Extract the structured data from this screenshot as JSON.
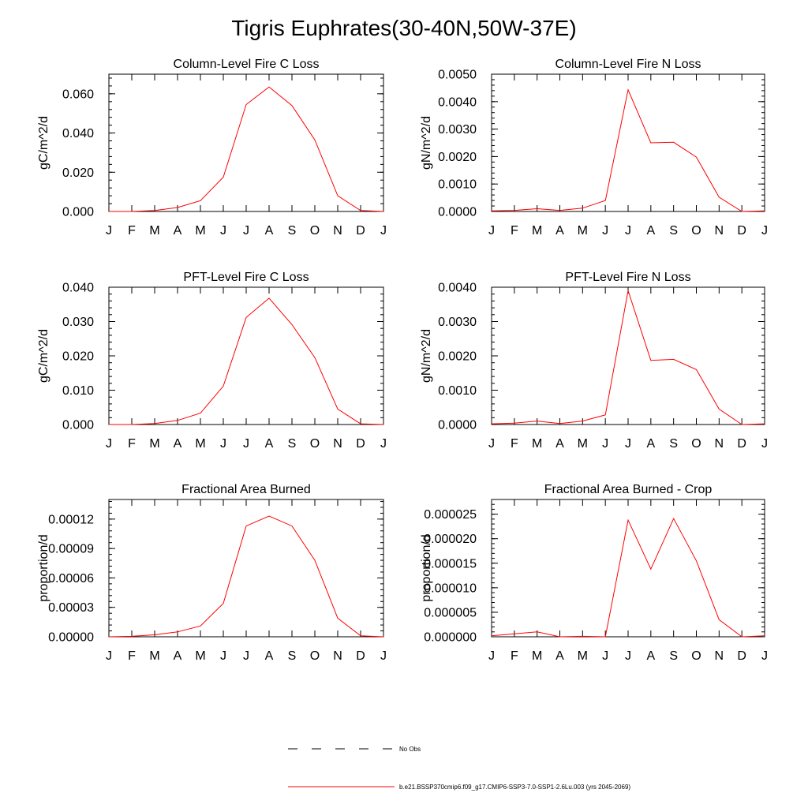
{
  "figure_title": "Tigris Euphrates(30-40N,50W-37E)",
  "series_color": "#ff0000",
  "legend": {
    "obs_label": "No Obs",
    "model_label": "b.e21.BSSP370cmip6.f09_g17.CMIP6-SSP3-7.0-SSP1-2.6Lu.003 (yrs 2045-2069)"
  },
  "chart_data": [
    {
      "type": "line",
      "title": "Column-Level Fire C Loss",
      "ylabel": "gC/m^2/d",
      "categories": [
        "J",
        "F",
        "M",
        "A",
        "M",
        "J",
        "J",
        "A",
        "S",
        "O",
        "N",
        "D",
        "J"
      ],
      "ylim": [
        0,
        0.07
      ],
      "yticks": [
        "0.000",
        "0.020",
        "0.040",
        "0.060"
      ],
      "ytick_values": [
        0,
        0.02,
        0.04,
        0.06
      ],
      "series": [
        {
          "values": [
            0.0,
            0.0,
            0.0005,
            0.002,
            0.0055,
            0.0175,
            0.0545,
            0.0635,
            0.054,
            0.0365,
            0.008,
            0.0005,
            0.0
          ]
        }
      ]
    },
    {
      "type": "line",
      "title": "Column-Level Fire N Loss",
      "ylabel": "gN/m^2/d",
      "categories": [
        "J",
        "F",
        "M",
        "A",
        "M",
        "J",
        "J",
        "A",
        "S",
        "O",
        "N",
        "D",
        "J"
      ],
      "ylim": [
        0,
        0.005
      ],
      "yticks": [
        "0.0000",
        "0.0010",
        "0.0020",
        "0.0030",
        "0.0040",
        "0.0050"
      ],
      "ytick_values": [
        0,
        0.001,
        0.002,
        0.003,
        0.004,
        0.005
      ],
      "series": [
        {
          "values": [
            2e-05,
            4e-05,
            0.0001,
            4e-05,
            0.00012,
            0.0004,
            0.00443,
            0.0025,
            0.00252,
            0.00198,
            0.00052,
            0.0,
            2e-05
          ]
        }
      ]
    },
    {
      "type": "line",
      "title": "PFT-Level Fire C Loss",
      "ylabel": "gC/m^2/d",
      "categories": [
        "J",
        "F",
        "M",
        "A",
        "M",
        "J",
        "J",
        "A",
        "S",
        "O",
        "N",
        "D",
        "J"
      ],
      "ylim": [
        0,
        0.04
      ],
      "yticks": [
        "0.000",
        "0.010",
        "0.020",
        "0.030",
        "0.040"
      ],
      "ytick_values": [
        0,
        0.01,
        0.02,
        0.03,
        0.04
      ],
      "series": [
        {
          "values": [
            0.0,
            0.0,
            0.0003,
            0.0012,
            0.0033,
            0.0112,
            0.0312,
            0.0368,
            0.0291,
            0.0195,
            0.0045,
            0.0002,
            0.0
          ]
        }
      ]
    },
    {
      "type": "line",
      "title": "PFT-Level Fire N Loss",
      "ylabel": "gN/m^2/d",
      "categories": [
        "J",
        "F",
        "M",
        "A",
        "M",
        "J",
        "J",
        "A",
        "S",
        "O",
        "N",
        "D",
        "J"
      ],
      "ylim": [
        0,
        0.004
      ],
      "yticks": [
        "0.0000",
        "0.0010",
        "0.0020",
        "0.0030",
        "0.0040"
      ],
      "ytick_values": [
        0,
        0.001,
        0.002,
        0.003,
        0.004
      ],
      "series": [
        {
          "values": [
            2e-05,
            4e-05,
            0.0001,
            3e-05,
            0.0001,
            0.00028,
            0.0039,
            0.00187,
            0.0019,
            0.0016,
            0.00045,
            0.0,
            2e-05
          ]
        }
      ]
    },
    {
      "type": "line",
      "title": "Fractional Area Burned",
      "ylabel": "proportion/d",
      "categories": [
        "J",
        "F",
        "M",
        "A",
        "M",
        "J",
        "J",
        "A",
        "S",
        "O",
        "N",
        "D",
        "J"
      ],
      "ylim": [
        0,
        0.00014
      ],
      "yticks": [
        "0.00000",
        "0.00003",
        "0.00006",
        "0.00009",
        "0.00012"
      ],
      "ytick_values": [
        0,
        3e-05,
        6e-05,
        9e-05,
        0.00012
      ],
      "series": [
        {
          "values": [
            0.0,
            5e-07,
            2e-06,
            5e-06,
            1.1e-05,
            3.4e-05,
            0.000113,
            0.000123,
            0.000113,
            7.8e-05,
            1.9e-05,
            1e-06,
            0.0
          ]
        }
      ]
    },
    {
      "type": "line",
      "title": "Fractional Area Burned - Crop",
      "ylabel": "proportion/d",
      "categories": [
        "J",
        "F",
        "M",
        "A",
        "M",
        "J",
        "J",
        "A",
        "S",
        "O",
        "N",
        "D",
        "J"
      ],
      "ylim": [
        0,
        2.8e-05
      ],
      "yticks": [
        "0.000000",
        "0.000005",
        "0.000010",
        "0.000015",
        "0.000020",
        "0.000025"
      ],
      "ytick_values": [
        0,
        5e-06,
        1e-05,
        1.5e-05,
        2e-05,
        2.5e-05
      ],
      "series": [
        {
          "values": [
            2e-07,
            6e-07,
            1e-06,
            0.0,
            1e-07,
            0.0,
            2.38e-05,
            1.38e-05,
            2.41e-05,
            1.55e-05,
            3.5e-06,
            0.0,
            2e-07
          ]
        }
      ]
    }
  ]
}
